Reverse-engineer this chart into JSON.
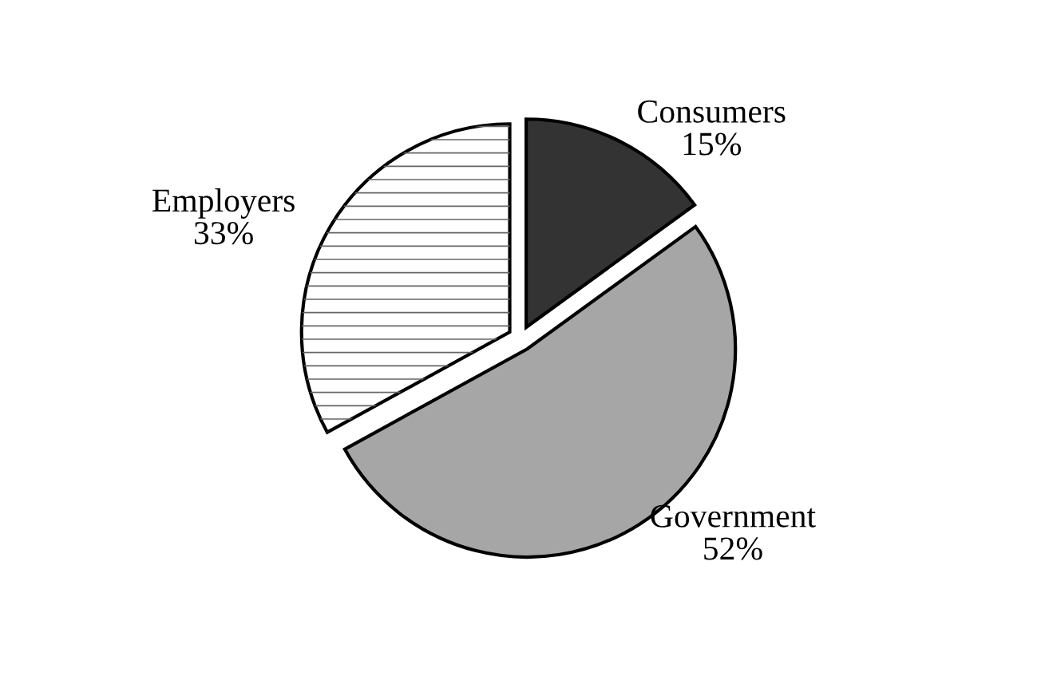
{
  "chart_data": {
    "type": "pie",
    "categories": [
      "Consumers",
      "Government",
      "Employers"
    ],
    "values": [
      15,
      52,
      33
    ],
    "value_labels": [
      "15%",
      "52%",
      "33%"
    ],
    "colors": [
      "#333333",
      "#a6a6a6",
      "#ffffff"
    ]
  }
}
